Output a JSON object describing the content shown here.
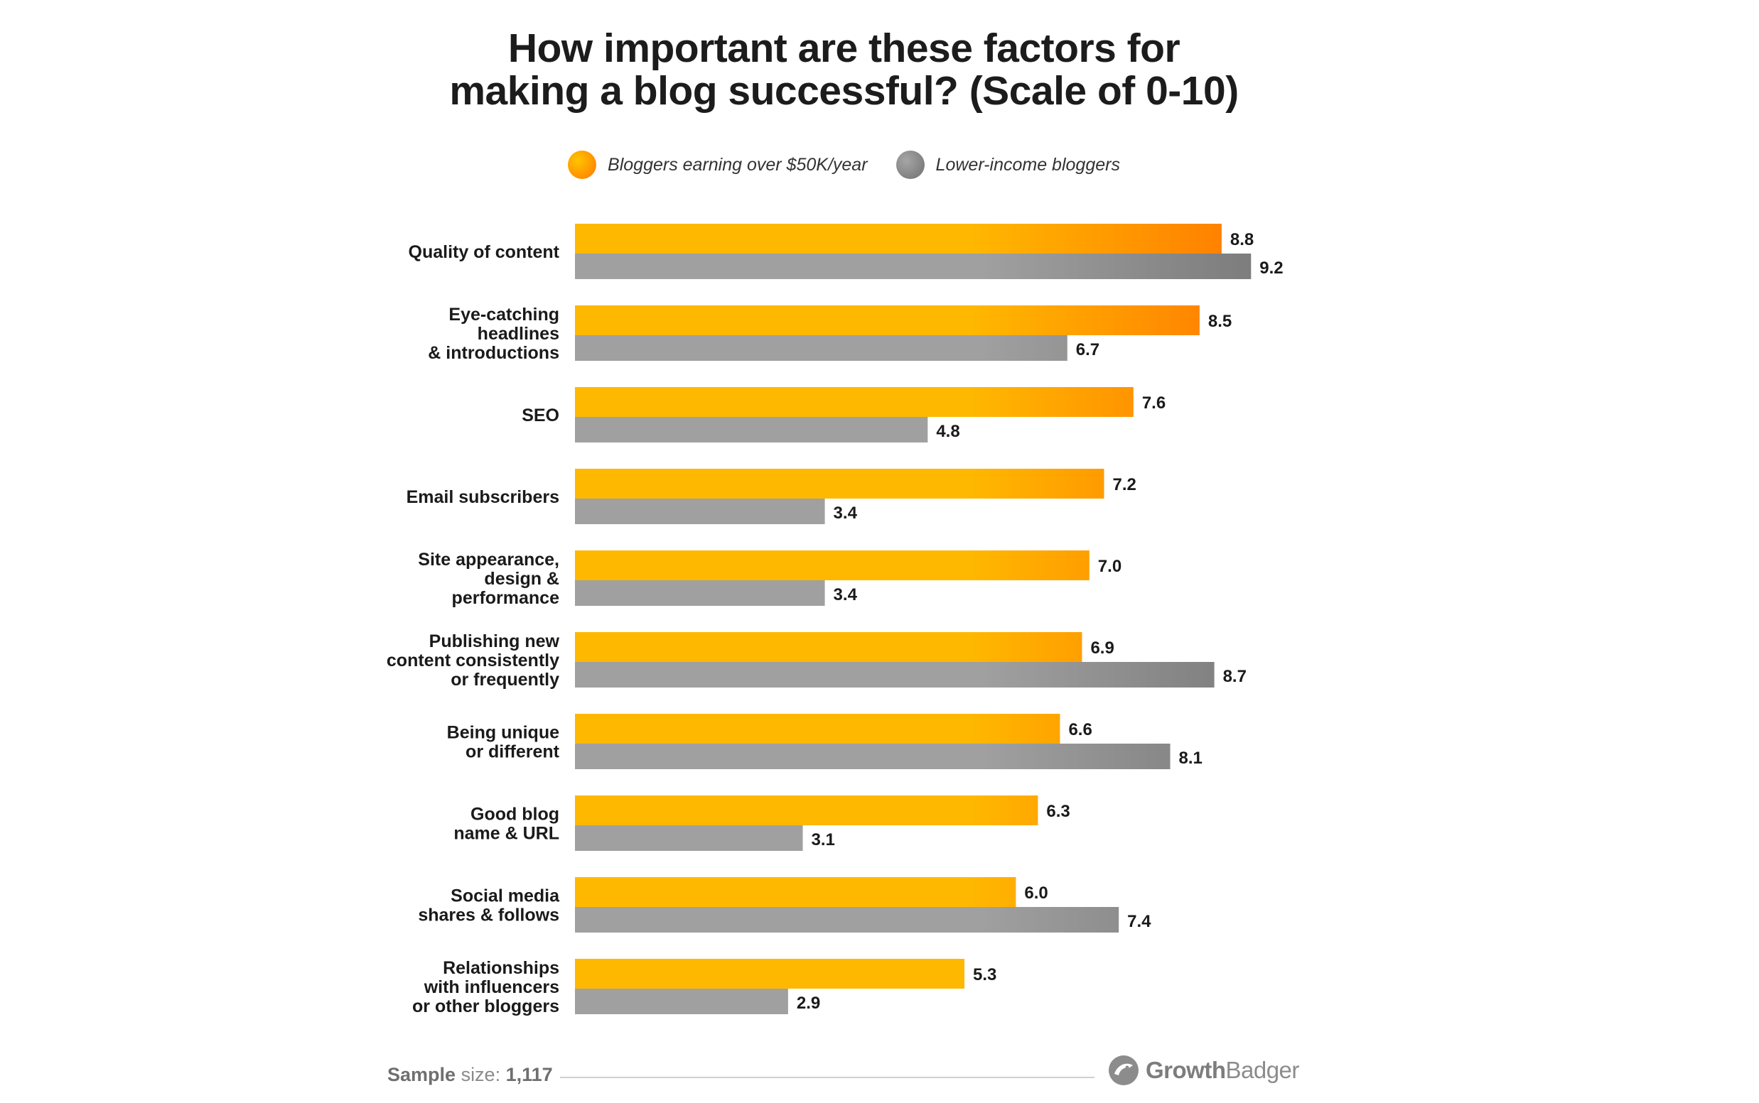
{
  "title": {
    "line1": "How important are these factors for",
    "line2": "making a blog successful? (Scale of 0-10)"
  },
  "legend": {
    "series1": "Bloggers earning over $50K/year",
    "series2": "Lower-income bloggers"
  },
  "footer": {
    "sample_label": "Sample",
    "size_label": "size:",
    "sample_value": "1,117",
    "brand_bold": "Growth",
    "brand_light": "Badger"
  },
  "colors": {
    "orange_start": "#ffb800",
    "orange_end": "#ff8000",
    "gray_start": "#a0a0a0",
    "gray_end": "#7d7d7d"
  },
  "chart_data": {
    "type": "bar",
    "orientation": "horizontal",
    "title": "How important are these factors for making a blog successful? (Scale of 0-10)",
    "categories": [
      [
        "Quality of content"
      ],
      [
        "Eye-catching",
        "headlines",
        "& introductions"
      ],
      [
        "SEO"
      ],
      [
        "Email subscribers"
      ],
      [
        "Site appearance,",
        "design &",
        "performance"
      ],
      [
        "Publishing new",
        "content consistently",
        "or frequently"
      ],
      [
        "Being unique",
        "or different"
      ],
      [
        "Good blog",
        "name & URL"
      ],
      [
        "Social media",
        "shares & follows"
      ],
      [
        "Relationships",
        "with influencers",
        "or other bloggers"
      ]
    ],
    "series": [
      {
        "name": "Bloggers earning over $50K/year",
        "values": [
          8.8,
          8.5,
          7.6,
          7.2,
          7.0,
          6.9,
          6.6,
          6.3,
          6.0,
          5.3
        ]
      },
      {
        "name": "Lower-income bloggers",
        "values": [
          9.2,
          6.7,
          4.8,
          3.4,
          3.4,
          8.7,
          8.1,
          3.1,
          7.4,
          2.9
        ]
      }
    ],
    "xlim": [
      0,
      10
    ],
    "grid": false,
    "legend_position": "top"
  }
}
